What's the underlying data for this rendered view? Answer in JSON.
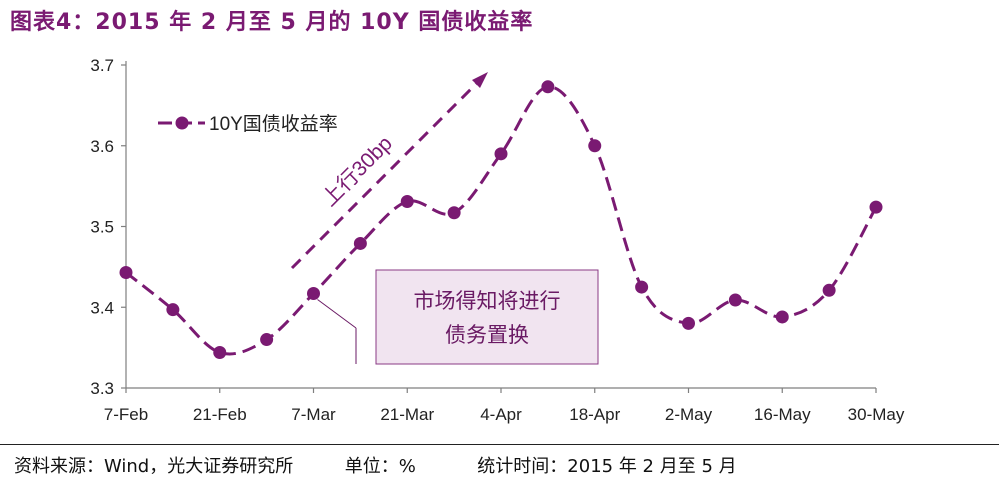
{
  "title": "图表4：2015 年 2 月至 5 月的 10Y 国债收益率",
  "colors": {
    "series": "#7a1a72",
    "annotation_fill": "#f1e4f0",
    "annotation_border": "#8a3a84"
  },
  "chart_data": {
    "type": "line",
    "x": [
      "7-Feb",
      "14-Feb",
      "21-Feb",
      "28-Feb",
      "7-Mar",
      "14-Mar",
      "21-Mar",
      "28-Mar",
      "4-Apr",
      "11-Apr",
      "18-Apr",
      "25-Apr",
      "2-May",
      "9-May",
      "16-May",
      "23-May",
      "30-May"
    ],
    "x_tick_labels": [
      "7-Feb",
      "21-Feb",
      "7-Mar",
      "21-Mar",
      "4-Apr",
      "18-Apr",
      "2-May",
      "16-May",
      "30-May"
    ],
    "series": [
      {
        "name": "10Y国债收益率",
        "values": [
          3.443,
          3.397,
          3.344,
          3.36,
          3.417,
          3.479,
          3.531,
          3.517,
          3.59,
          3.673,
          3.6,
          3.425,
          3.38,
          3.409,
          3.388,
          3.421,
          3.524
        ]
      }
    ],
    "ylim": [
      3.3,
      3.7
    ],
    "y_ticks": [
      "3.3",
      "3.4",
      "3.5",
      "3.6",
      "3.7"
    ],
    "annotations": {
      "arrow_label": "上行30bp",
      "box_line1": "市场得知将进行",
      "box_line2": "债务置换"
    },
    "legend_position": "top-left",
    "grid": false
  },
  "footer": {
    "source": "资料来源：Wind，光大证券研究所",
    "unit": "单位：%",
    "period": "统计时间：2015 年 2 月至 5 月"
  }
}
